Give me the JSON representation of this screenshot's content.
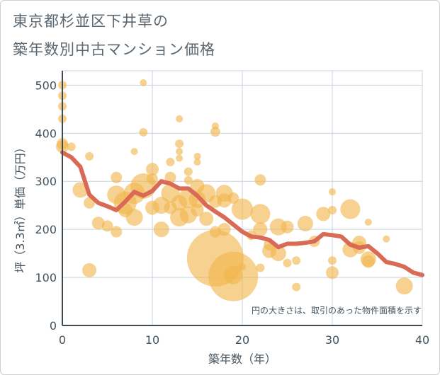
{
  "title_lines": [
    "東京都杉並区下井草の",
    "築年数別中古マンション価格"
  ],
  "chart_data": {
    "type": "scatter",
    "title": "東京都杉並区下井草の築年数別中古マンション価格",
    "xlabel": "築年数（年）",
    "ylabel": "坪（3.3㎡）単価（万円）",
    "xlim": [
      0,
      40
    ],
    "ylim": [
      0,
      530
    ],
    "xticks": [
      0,
      10,
      20,
      30,
      40
    ],
    "yticks": [
      0,
      100,
      200,
      300,
      400,
      500
    ],
    "grid": true,
    "annotation": "円の大きさは、取引のあった物件面積を示す",
    "colors": {
      "bubble": "#f0b44c",
      "line": "#d96a55",
      "grid": "#c7d3de"
    },
    "bubbles": [
      {
        "x": 0,
        "y": 500,
        "s": 6
      },
      {
        "x": 0,
        "y": 478,
        "s": 6
      },
      {
        "x": 0,
        "y": 456,
        "s": 6
      },
      {
        "x": 0,
        "y": 430,
        "s": 6
      },
      {
        "x": 0,
        "y": 378,
        "s": 8
      },
      {
        "x": 0,
        "y": 372,
        "s": 9
      },
      {
        "x": 1,
        "y": 372,
        "s": 6
      },
      {
        "x": 2,
        "y": 282,
        "s": 11
      },
      {
        "x": 3,
        "y": 352,
        "s": 6
      },
      {
        "x": 3,
        "y": 255,
        "s": 8
      },
      {
        "x": 3,
        "y": 115,
        "s": 10
      },
      {
        "x": 4,
        "y": 213,
        "s": 9
      },
      {
        "x": 5,
        "y": 207,
        "s": 8
      },
      {
        "x": 6,
        "y": 308,
        "s": 8
      },
      {
        "x": 6,
        "y": 272,
        "s": 13
      },
      {
        "x": 6,
        "y": 195,
        "s": 8
      },
      {
        "x": 7,
        "y": 255,
        "s": 16
      },
      {
        "x": 7,
        "y": 240,
        "s": 10
      },
      {
        "x": 8,
        "y": 275,
        "s": 15
      },
      {
        "x": 8,
        "y": 225,
        "s": 12
      },
      {
        "x": 8,
        "y": 362,
        "s": 5
      },
      {
        "x": 9,
        "y": 505,
        "s": 5
      },
      {
        "x": 9,
        "y": 402,
        "s": 6
      },
      {
        "x": 9,
        "y": 290,
        "s": 18
      },
      {
        "x": 10,
        "y": 325,
        "s": 9
      },
      {
        "x": 10,
        "y": 305,
        "s": 8
      },
      {
        "x": 10,
        "y": 245,
        "s": 10
      },
      {
        "x": 11,
        "y": 250,
        "s": 12
      },
      {
        "x": 11,
        "y": 200,
        "s": 11
      },
      {
        "x": 12,
        "y": 340,
        "s": 6
      },
      {
        "x": 12,
        "y": 308,
        "s": 8
      },
      {
        "x": 12,
        "y": 275,
        "s": 13
      },
      {
        "x": 12,
        "y": 245,
        "s": 9
      },
      {
        "x": 13,
        "y": 430,
        "s": 5
      },
      {
        "x": 13,
        "y": 378,
        "s": 6
      },
      {
        "x": 13,
        "y": 362,
        "s": 5
      },
      {
        "x": 13,
        "y": 348,
        "s": 5
      },
      {
        "x": 13,
        "y": 255,
        "s": 11
      },
      {
        "x": 13,
        "y": 225,
        "s": 13
      },
      {
        "x": 14,
        "y": 320,
        "s": 6
      },
      {
        "x": 14,
        "y": 302,
        "s": 6
      },
      {
        "x": 14,
        "y": 265,
        "s": 14
      },
      {
        "x": 14,
        "y": 230,
        "s": 12
      },
      {
        "x": 15,
        "y": 352,
        "s": 5
      },
      {
        "x": 15,
        "y": 340,
        "s": 5
      },
      {
        "x": 15,
        "y": 290,
        "s": 10
      },
      {
        "x": 15,
        "y": 262,
        "s": 12
      },
      {
        "x": 15,
        "y": 240,
        "s": 9
      },
      {
        "x": 16,
        "y": 275,
        "s": 13
      },
      {
        "x": 16,
        "y": 222,
        "s": 10
      },
      {
        "x": 17,
        "y": 415,
        "s": 5
      },
      {
        "x": 17,
        "y": 403,
        "s": 7
      },
      {
        "x": 17,
        "y": 258,
        "s": 9
      },
      {
        "x": 17,
        "y": 195,
        "s": 8
      },
      {
        "x": 17,
        "y": 140,
        "s": 40
      },
      {
        "x": 18,
        "y": 275,
        "s": 12
      },
      {
        "x": 18,
        "y": 260,
        "s": 10
      },
      {
        "x": 18,
        "y": 200,
        "s": 9
      },
      {
        "x": 19,
        "y": 265,
        "s": 8
      },
      {
        "x": 19,
        "y": 105,
        "s": 13
      },
      {
        "x": 19,
        "y": 102,
        "s": 35
      },
      {
        "x": 20,
        "y": 242,
        "s": 15
      },
      {
        "x": 20,
        "y": 122,
        "s": 5
      },
      {
        "x": 21,
        "y": 188,
        "s": 7
      },
      {
        "x": 22,
        "y": 303,
        "s": 8
      },
      {
        "x": 22,
        "y": 232,
        "s": 14
      },
      {
        "x": 22,
        "y": 200,
        "s": 10
      },
      {
        "x": 22,
        "y": 120,
        "s": 6
      },
      {
        "x": 23,
        "y": 168,
        "s": 8
      },
      {
        "x": 23,
        "y": 155,
        "s": 10
      },
      {
        "x": 24,
        "y": 205,
        "s": 12
      },
      {
        "x": 24,
        "y": 150,
        "s": 11
      },
      {
        "x": 25,
        "y": 205,
        "s": 9
      },
      {
        "x": 25,
        "y": 130,
        "s": 6
      },
      {
        "x": 26,
        "y": 80,
        "s": 6
      },
      {
        "x": 26,
        "y": 135,
        "s": 6
      },
      {
        "x": 27,
        "y": 212,
        "s": 11
      },
      {
        "x": 28,
        "y": 175,
        "s": 8
      },
      {
        "x": 29,
        "y": 232,
        "s": 10
      },
      {
        "x": 30,
        "y": 278,
        "s": 5
      },
      {
        "x": 30,
        "y": 240,
        "s": 6
      },
      {
        "x": 30,
        "y": 135,
        "s": 6
      },
      {
        "x": 30,
        "y": 110,
        "s": 9
      },
      {
        "x": 32,
        "y": 242,
        "s": 14
      },
      {
        "x": 32,
        "y": 158,
        "s": 11
      },
      {
        "x": 33,
        "y": 172,
        "s": 10
      },
      {
        "x": 33,
        "y": 162,
        "s": 9
      },
      {
        "x": 34,
        "y": 215,
        "s": 5
      },
      {
        "x": 34,
        "y": 138,
        "s": 11
      },
      {
        "x": 34,
        "y": 133,
        "s": 9
      },
      {
        "x": 36,
        "y": 180,
        "s": 5
      },
      {
        "x": 38,
        "y": 82,
        "s": 12
      }
    ],
    "series": [
      {
        "x": [
          0,
          1,
          2,
          3,
          4,
          5,
          6,
          7,
          8,
          9,
          10,
          11,
          12,
          13,
          14,
          15,
          16,
          17,
          18,
          19,
          20,
          21,
          22,
          23,
          24,
          25,
          26,
          27,
          28,
          29,
          30,
          31,
          32,
          33,
          34,
          35,
          36,
          37,
          38,
          39,
          40
        ],
        "values": [
          360,
          350,
          330,
          272,
          255,
          248,
          240,
          258,
          278,
          270,
          280,
          300,
          295,
          285,
          285,
          270,
          250,
          237,
          225,
          210,
          195,
          185,
          183,
          178,
          163,
          170,
          170,
          172,
          175,
          190,
          188,
          185,
          168,
          162,
          165,
          150,
          132,
          128,
          122,
          110,
          105
        ]
      }
    ]
  }
}
